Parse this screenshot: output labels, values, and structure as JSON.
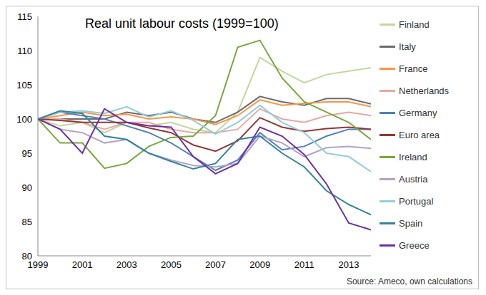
{
  "chart_data": {
    "type": "line",
    "title": "Real unit labour costs (1999=100)",
    "source": "Source: Ameco, own calculations",
    "x": [
      1999,
      2000,
      2001,
      2002,
      2003,
      2004,
      2005,
      2006,
      2007,
      2008,
      2009,
      2010,
      2011,
      2012,
      2013,
      2014
    ],
    "xlim": [
      1999,
      2014
    ],
    "xticks": [
      1999,
      2001,
      2003,
      2005,
      2007,
      2009,
      2011,
      2013
    ],
    "ylim": [
      80,
      115
    ],
    "yticks": [
      80,
      85,
      90,
      95,
      100,
      105,
      110,
      115
    ],
    "grid": false,
    "legend": "right",
    "series": [
      {
        "name": "Finland",
        "color": "#c3d69b",
        "values": [
          100,
          99,
          99.5,
          98,
          99.5,
          99,
          99.5,
          98.5,
          98,
          101,
          109,
          107,
          105.3,
          106.5,
          107,
          107.5
        ]
      },
      {
        "name": "Italy",
        "color": "#6b6b6b",
        "values": [
          100,
          100,
          100,
          100,
          101,
          100.5,
          101,
          100,
          99.5,
          101,
          103.3,
          102.5,
          102,
          103,
          103,
          102.2
        ]
      },
      {
        "name": "France",
        "color": "#f79646",
        "values": [
          100,
          100.5,
          101,
          100.5,
          100.7,
          100,
          100.3,
          100,
          99.2,
          100.5,
          102.8,
          102,
          102.3,
          102.5,
          102.5,
          101.8
        ]
      },
      {
        "name": "Netherlands",
        "color": "#e6a9a3",
        "values": [
          100,
          100,
          99.5,
          98.5,
          99.5,
          99.5,
          98.5,
          98,
          98,
          98.5,
          101.5,
          100,
          99.5,
          100.5,
          101,
          100.5
        ]
      },
      {
        "name": "Germany",
        "color": "#4f81bd",
        "values": [
          100,
          101,
          100.5,
          100,
          99,
          98,
          96.5,
          94.5,
          92.5,
          94,
          98,
          95.5,
          96,
          97.5,
          98.5,
          98.5
        ]
      },
      {
        "name": "Euro area",
        "color": "#953735",
        "values": [
          100,
          99.8,
          99.5,
          99.5,
          99.5,
          98.7,
          98,
          96.2,
          95.3,
          96.8,
          100.2,
          98.8,
          98.2,
          98.6,
          98.8,
          98.5
        ]
      },
      {
        "name": "Ireland",
        "color": "#77a83b",
        "values": [
          100,
          96.5,
          96.5,
          92.8,
          93.5,
          96,
          97.3,
          97.5,
          100.5,
          110.5,
          111.5,
          106,
          102.5,
          101,
          99.5,
          97
        ]
      },
      {
        "name": "Austria",
        "color": "#b3a2c7",
        "values": [
          100,
          98.5,
          98,
          96.5,
          97,
          95,
          94,
          93.2,
          93,
          93.5,
          97.5,
          96.5,
          94.5,
          95.8,
          96,
          95.7
        ]
      },
      {
        "name": "Portugal",
        "color": "#93cddd",
        "values": [
          100,
          101,
          101.2,
          100.8,
          101.8,
          100.3,
          101.2,
          99.8,
          97.8,
          99.5,
          102,
          99.5,
          98,
          95,
          94.5,
          92.3
        ]
      },
      {
        "name": "Spain",
        "color": "#31859c",
        "values": [
          100,
          101.2,
          100.8,
          97.5,
          97,
          95,
          93.8,
          92.7,
          93.5,
          97,
          97.5,
          95,
          93,
          89.5,
          87.5,
          86
        ]
      },
      {
        "name": "Greece",
        "color": "#7030a0",
        "values": [
          100,
          98.5,
          95,
          101.5,
          99.5,
          99,
          98.8,
          94.5,
          92,
          93.5,
          98.8,
          97.5,
          94.8,
          90.5,
          84.8,
          83.8
        ]
      }
    ]
  }
}
